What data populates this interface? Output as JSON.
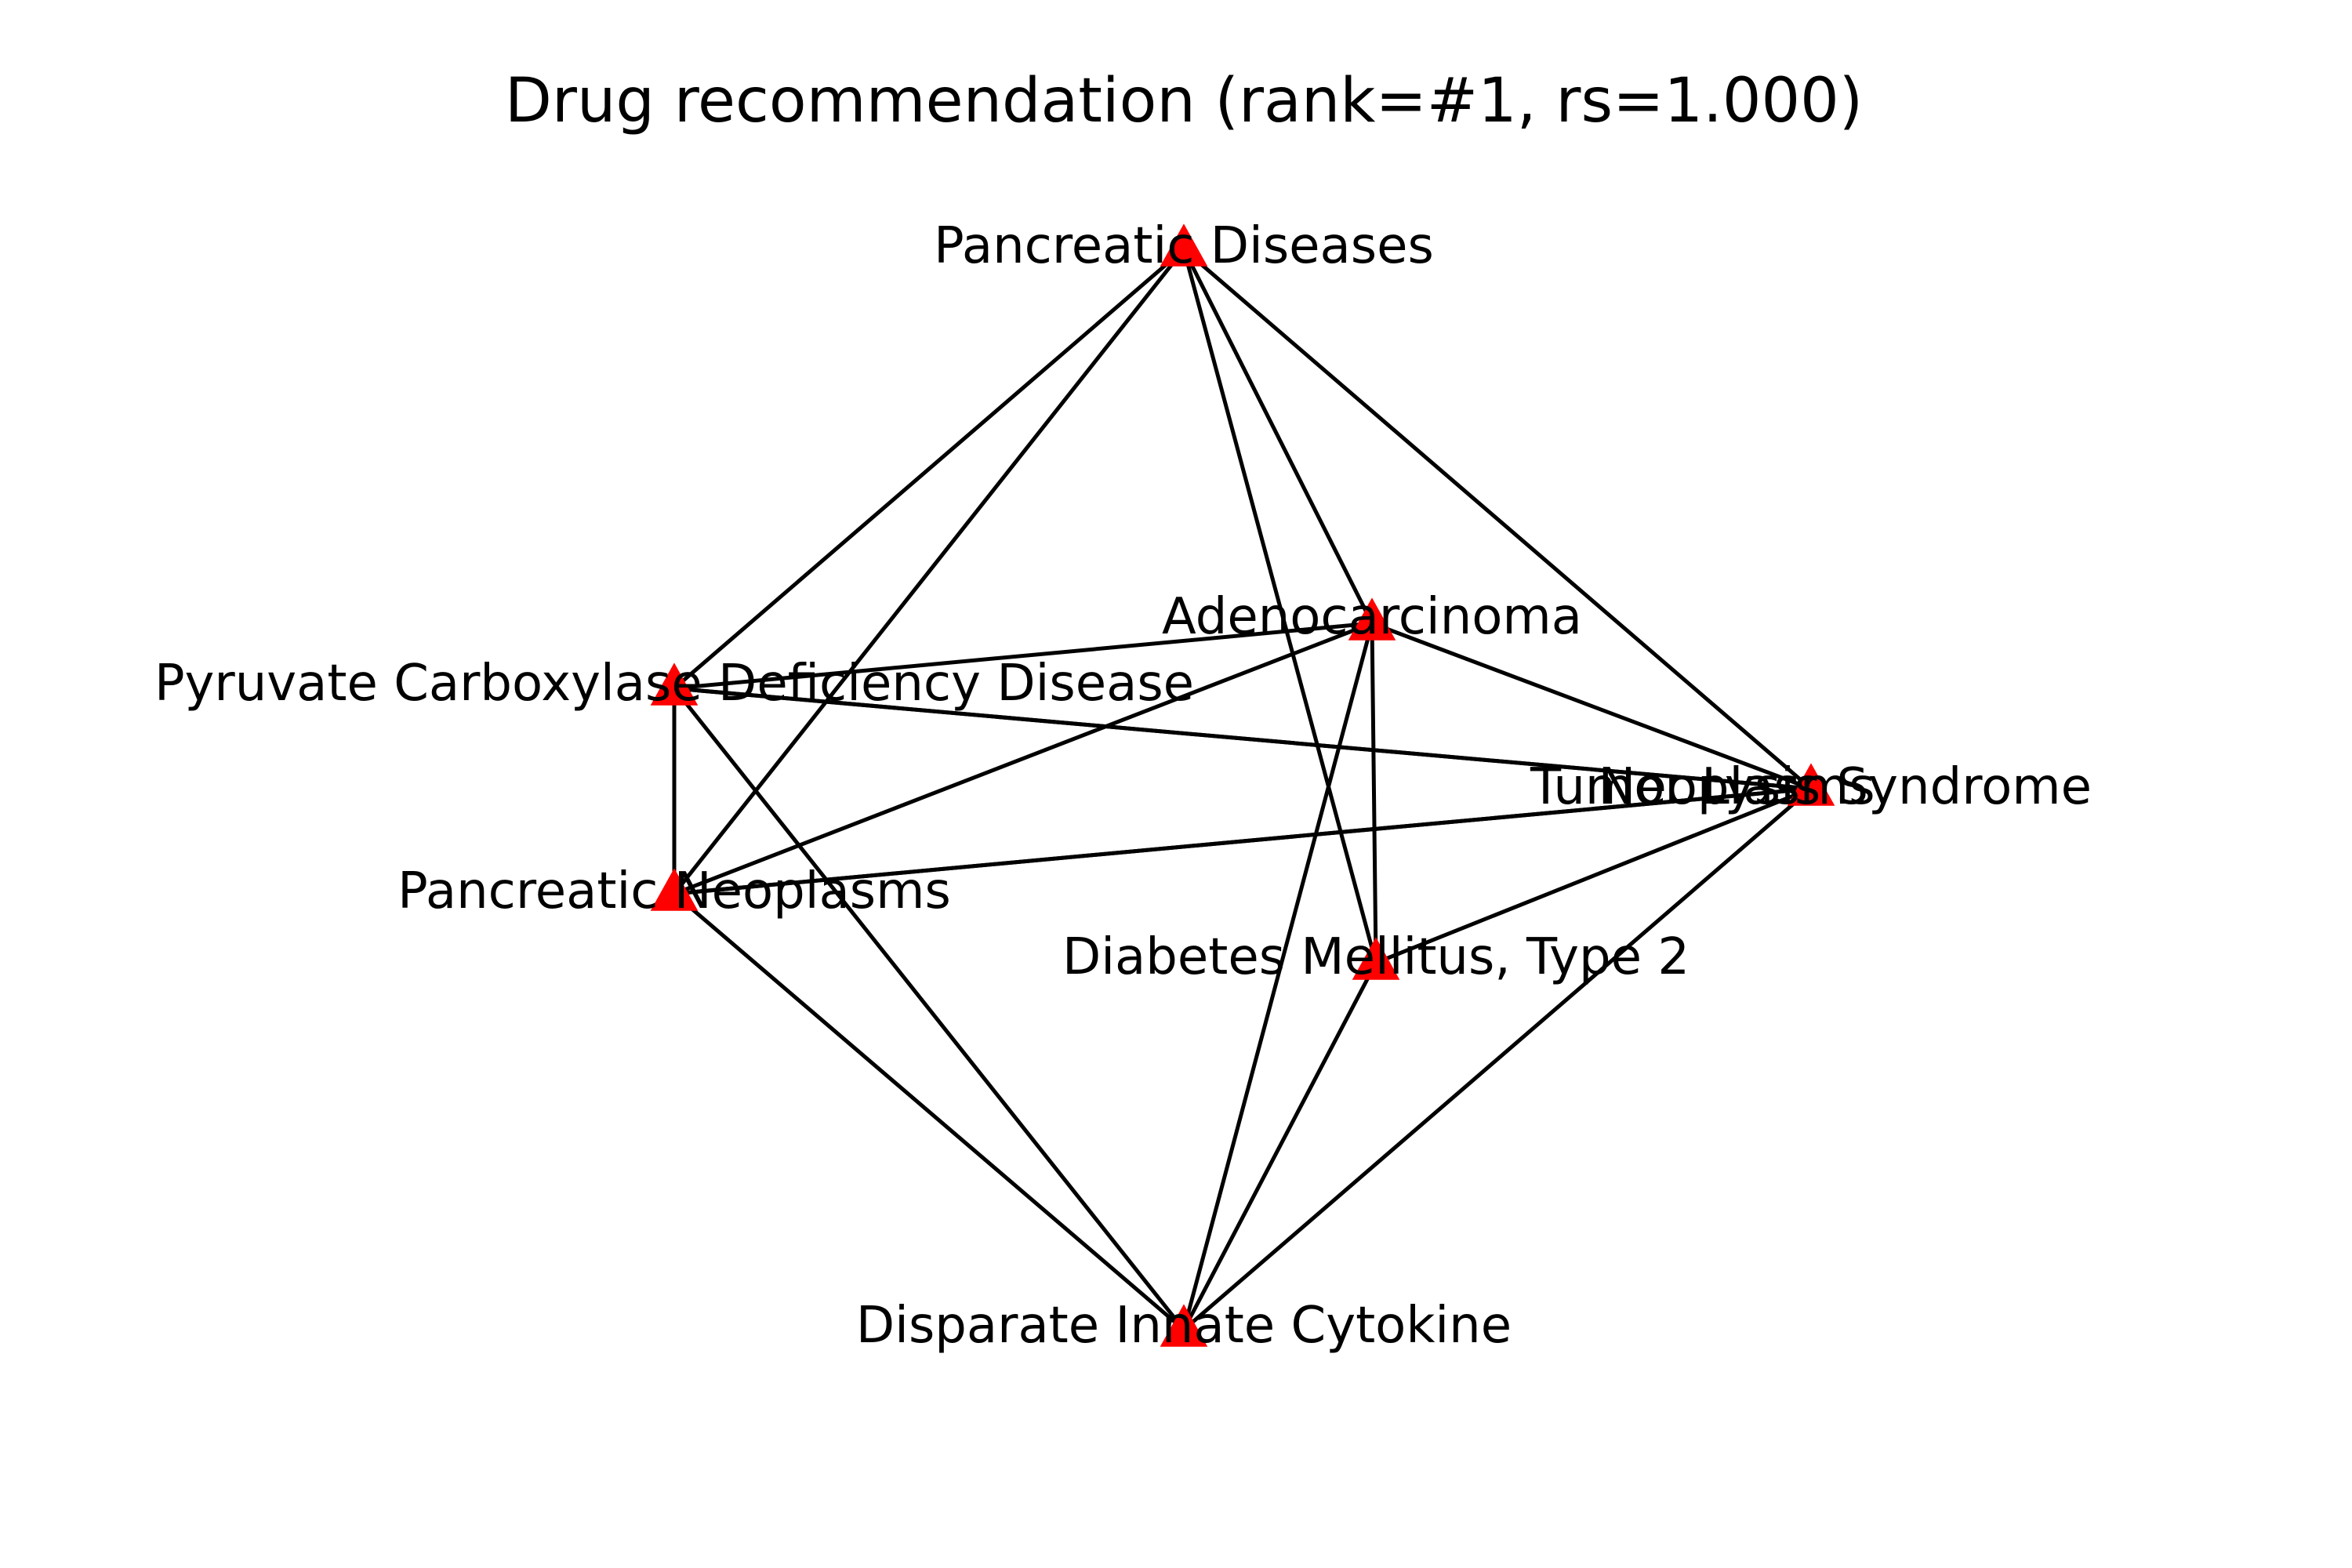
{
  "title": "Drug recommendation (rank=#1, rs=1.000)",
  "colors": {
    "node": "#ff0000",
    "edge": "#000000",
    "text": "#000000",
    "background": "#ffffff"
  },
  "node_marker": "red-triangle-icon",
  "nodes": [
    {
      "id": "pancreatic-diseases",
      "label": "Pancreatic Diseases"
    },
    {
      "id": "adenocarcinoma",
      "label": "Adenocarcinoma"
    },
    {
      "id": "pyruvate-carboxylase",
      "label": "Pyruvate Carboxylase Deficiency Disease"
    },
    {
      "id": "tumor-lysis",
      "label": "Tumor Lysis Syndrome"
    },
    {
      "id": "neoplasms",
      "label": "Neoplasms"
    },
    {
      "id": "pancreatic-neoplasms",
      "label": "Pancreatic Neoplasms"
    },
    {
      "id": "diabetes-type-2",
      "label": "Diabetes Mellitus, Type 2"
    },
    {
      "id": "disparate-innate-cytokine",
      "label": "Disparate Innate Cytokine"
    }
  ],
  "edges": [
    [
      "pancreatic-diseases",
      "pyruvate-carboxylase"
    ],
    [
      "pancreatic-diseases",
      "pancreatic-neoplasms"
    ],
    [
      "pancreatic-diseases",
      "adenocarcinoma"
    ],
    [
      "pancreatic-diseases",
      "diabetes-type-2"
    ],
    [
      "pancreatic-diseases",
      "neoplasms"
    ],
    [
      "pyruvate-carboxylase",
      "adenocarcinoma"
    ],
    [
      "pyruvate-carboxylase",
      "neoplasms"
    ],
    [
      "pyruvate-carboxylase",
      "tumor-lysis"
    ],
    [
      "pyruvate-carboxylase",
      "pancreatic-neoplasms"
    ],
    [
      "pyruvate-carboxylase",
      "disparate-innate-cytokine"
    ],
    [
      "adenocarcinoma",
      "pancreatic-neoplasms"
    ],
    [
      "adenocarcinoma",
      "neoplasms"
    ],
    [
      "adenocarcinoma",
      "diabetes-type-2"
    ],
    [
      "adenocarcinoma",
      "disparate-innate-cytokine"
    ],
    [
      "pancreatic-neoplasms",
      "neoplasms"
    ],
    [
      "pancreatic-neoplasms",
      "tumor-lysis"
    ],
    [
      "pancreatic-neoplasms",
      "disparate-innate-cytokine"
    ],
    [
      "diabetes-type-2",
      "neoplasms"
    ],
    [
      "diabetes-type-2",
      "disparate-innate-cytokine"
    ],
    [
      "disparate-innate-cytokine",
      "neoplasms"
    ]
  ]
}
